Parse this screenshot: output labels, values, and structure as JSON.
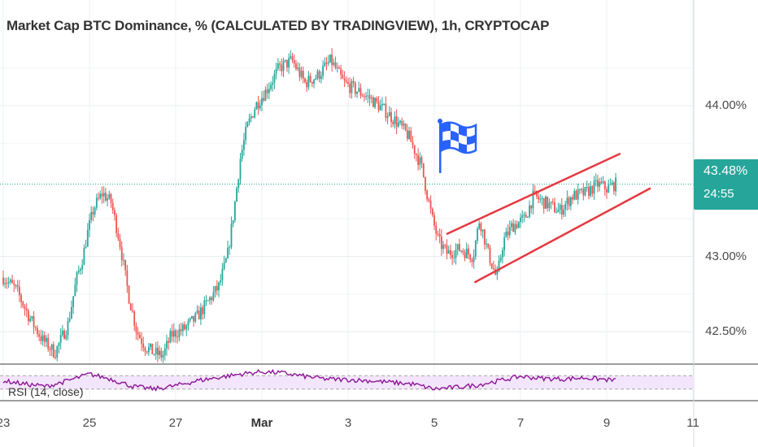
{
  "title": "Market Cap BTC Dominance, % (CALCULATED BY TRADINGVIEW), 1h, CRYPTOCAP",
  "rsi_label": "RSI (14, close)",
  "price_badge": {
    "price": "43.48%",
    "countdown": "24:55"
  },
  "colors": {
    "up": "#26a69a",
    "down": "#ef5350",
    "channel": "#e53940",
    "rsi_line": "#8e1599",
    "rsi_band": "#f3e5fb",
    "flag": "#2962ff"
  },
  "chart_data": {
    "type": "candlestick",
    "title": "Market Cap BTC Dominance, % (CALCULATED BY TRADINGVIEW), 1h, CRYPTOCAP",
    "y_ticks": [
      "44.00%",
      "43.00%",
      "42.50%"
    ],
    "y_tick_values": [
      44.0,
      43.0,
      42.5
    ],
    "x_ticks": [
      "23",
      "25",
      "27",
      "Mar",
      "3",
      "5",
      "7",
      "9",
      "11"
    ],
    "x_tick_index": [
      0,
      2,
      4,
      6,
      8,
      10,
      12,
      14,
      16
    ],
    "ylim": [
      42.3,
      44.6
    ],
    "last_price": 43.48,
    "close_path": [
      [
        0,
        42.86
      ],
      [
        0.3,
        42.78
      ],
      [
        0.6,
        42.6
      ],
      [
        0.9,
        42.45
      ],
      [
        1.2,
        42.36
      ],
      [
        1.5,
        42.55
      ],
      [
        1.7,
        42.85
      ],
      [
        1.85,
        43.0
      ],
      [
        1.95,
        43.15
      ],
      [
        2.1,
        43.32
      ],
      [
        2.3,
        43.42
      ],
      [
        2.5,
        43.36
      ],
      [
        2.7,
        43.1
      ],
      [
        2.9,
        42.75
      ],
      [
        3.1,
        42.5
      ],
      [
        3.3,
        42.4
      ],
      [
        3.5,
        42.36
      ],
      [
        3.7,
        42.34
      ],
      [
        3.9,
        42.48
      ],
      [
        4.2,
        42.52
      ],
      [
        4.5,
        42.6
      ],
      [
        4.75,
        42.7
      ],
      [
        5.0,
        42.8
      ],
      [
        5.2,
        43.0
      ],
      [
        5.35,
        43.3
      ],
      [
        5.5,
        43.65
      ],
      [
        5.65,
        43.85
      ],
      [
        5.85,
        44.0
      ],
      [
        6.1,
        44.1
      ],
      [
        6.4,
        44.25
      ],
      [
        6.7,
        44.3
      ],
      [
        7.0,
        44.15
      ],
      [
        7.3,
        44.2
      ],
      [
        7.6,
        44.3
      ],
      [
        7.9,
        44.15
      ],
      [
        8.2,
        44.1
      ],
      [
        8.5,
        44.05
      ],
      [
        8.8,
        43.98
      ],
      [
        9.1,
        43.9
      ],
      [
        9.4,
        43.8
      ],
      [
        9.7,
        43.6
      ],
      [
        9.95,
        43.25
      ],
      [
        10.1,
        43.1
      ],
      [
        10.3,
        43.02
      ],
      [
        10.6,
        43.05
      ],
      [
        10.9,
        43.0
      ],
      [
        11.05,
        43.25
      ],
      [
        11.25,
        43.02
      ],
      [
        11.45,
        42.85
      ],
      [
        11.6,
        43.1
      ],
      [
        11.8,
        43.2
      ],
      [
        12.1,
        43.25
      ],
      [
        12.3,
        43.4
      ],
      [
        12.6,
        43.35
      ],
      [
        12.9,
        43.3
      ],
      [
        13.2,
        43.4
      ],
      [
        13.5,
        43.42
      ],
      [
        13.8,
        43.48
      ],
      [
        14.0,
        43.45
      ],
      [
        14.2,
        43.48
      ]
    ],
    "trendlines": [
      {
        "name": "channel-upper",
        "from": [
          10.3,
          43.15
        ],
        "to": [
          14.3,
          43.68
        ]
      },
      {
        "name": "channel-lower",
        "from": [
          10.95,
          42.83
        ],
        "to": [
          15.0,
          43.45
        ]
      }
    ],
    "current_price_line": 43.48,
    "rsi": {
      "label": "RSI (14, close)",
      "upper_band": 70,
      "lower_band": 30,
      "values_path": [
        [
          0,
          55
        ],
        [
          0.5,
          45
        ],
        [
          1,
          38
        ],
        [
          1.5,
          55
        ],
        [
          2,
          75
        ],
        [
          2.5,
          60
        ],
        [
          3,
          38
        ],
        [
          3.5,
          30
        ],
        [
          4,
          40
        ],
        [
          4.5,
          55
        ],
        [
          5,
          65
        ],
        [
          5.5,
          75
        ],
        [
          6,
          82
        ],
        [
          6.5,
          78
        ],
        [
          7,
          68
        ],
        [
          7.5,
          60
        ],
        [
          8,
          58
        ],
        [
          8.5,
          55
        ],
        [
          9,
          50
        ],
        [
          9.5,
          45
        ],
        [
          10,
          30
        ],
        [
          10.5,
          35
        ],
        [
          11,
          42
        ],
        [
          11.5,
          55
        ],
        [
          12,
          68
        ],
        [
          12.5,
          62
        ],
        [
          13,
          60
        ],
        [
          13.5,
          64
        ],
        [
          14,
          58
        ],
        [
          14.2,
          56
        ]
      ]
    },
    "annotation": {
      "icon": "flag-icon",
      "at_x": 10.25
    }
  }
}
